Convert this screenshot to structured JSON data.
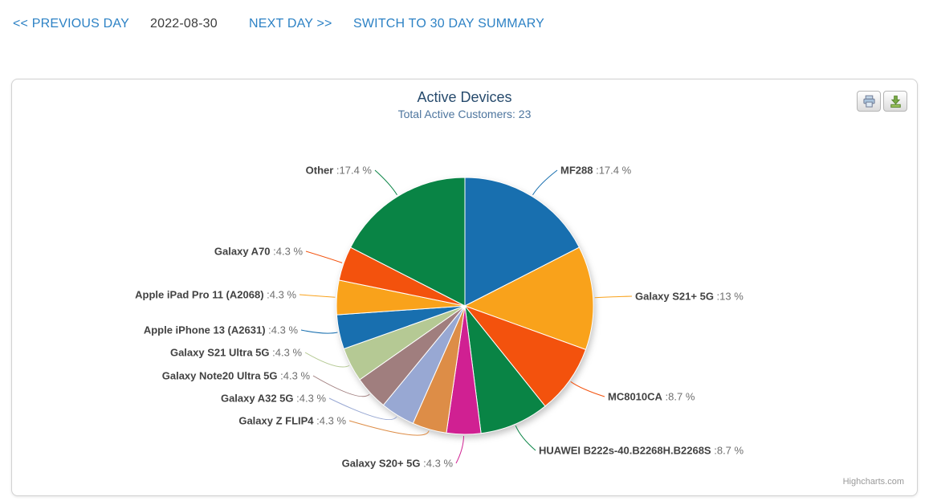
{
  "nav": {
    "previous_day": "<< PREVIOUS DAY",
    "date": "2022-08-30",
    "next_day": "NEXT DAY >>",
    "switch_summary": "SWITCH TO 30 DAY SUMMARY"
  },
  "chart": {
    "credit": "Highcharts.com"
  },
  "chart_data": {
    "type": "pie",
    "title": "Active Devices",
    "subtitle": "Total Active Customers: 23",
    "total_customers": 23,
    "unit": "%",
    "legend_position": "none",
    "slices": [
      {
        "label": "MF288",
        "value_label": ":17.4 %",
        "percent": 17.4,
        "color": "#186FAF"
      },
      {
        "label": "Galaxy S21+ 5G",
        "value_label": ":13 %",
        "percent": 13.0,
        "color": "#F9A21B"
      },
      {
        "label": "MC8010CA",
        "value_label": ":8.7 %",
        "percent": 8.7,
        "color": "#F3520D"
      },
      {
        "label": "HUAWEI B222s-40.B2268H.B2268S",
        "value_label": ":8.7 %",
        "percent": 8.7,
        "color": "#098445"
      },
      {
        "label": "Galaxy S20+ 5G",
        "value_label": ":4.3 %",
        "percent": 4.3,
        "color": "#D02092"
      },
      {
        "label": "Galaxy Z FLIP4",
        "value_label": ":4.3 %",
        "percent": 4.3,
        "color": "#DD8D47"
      },
      {
        "label": "Galaxy A32 5G",
        "value_label": ":4.3 %",
        "percent": 4.3,
        "color": "#98A8D3"
      },
      {
        "label": "Galaxy Note20 Ultra 5G",
        "value_label": ":4.3 %",
        "percent": 4.3,
        "color": "#A07E7E"
      },
      {
        "label": "Galaxy S21 Ultra 5G",
        "value_label": ":4.3 %",
        "percent": 4.3,
        "color": "#B5C994"
      },
      {
        "label": "Apple iPhone 13 (A2631)",
        "value_label": ":4.3 %",
        "percent": 4.3,
        "color": "#186FAF"
      },
      {
        "label": "Apple iPad Pro 11 (A2068)",
        "value_label": ":4.3 %",
        "percent": 4.3,
        "color": "#F9A21B"
      },
      {
        "label": "Galaxy A70",
        "value_label": ":4.3 %",
        "percent": 4.3,
        "color": "#F3520D"
      },
      {
        "label": "Other",
        "value_label": ":17.4 %",
        "percent": 17.4,
        "color": "#098445"
      }
    ]
  }
}
